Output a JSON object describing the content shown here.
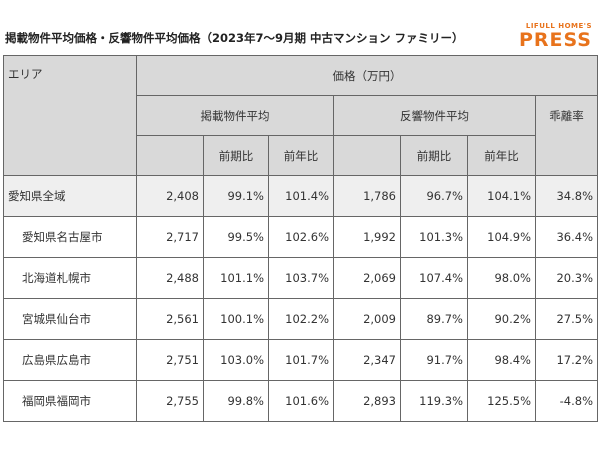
{
  "header": {
    "title": "掲載物件平均価格・反響物件平均価格（2023年7～9月期 中古マンション ファミリー）",
    "logo_top": "LIFULL HOME'S",
    "logo_main": "PRESS"
  },
  "table": {
    "area_header": "エリア",
    "price_header": "価格（万円）",
    "listed_header": "掲載物件平均",
    "response_header": "反響物件平均",
    "gap_header": "乖離率",
    "sub_headers": [
      "前期比",
      "前年比",
      "前期比",
      "前年比"
    ],
    "rows": [
      [
        "愛知県全域",
        "2,408",
        "99.1%",
        "101.4%",
        "1,786",
        "96.7%",
        "104.1%",
        "34.8%"
      ],
      [
        "愛知県名古屋市",
        "2,717",
        "99.5%",
        "102.6%",
        "1,992",
        "101.3%",
        "104.9%",
        "36.4%"
      ],
      [
        "北海道札幌市",
        "2,488",
        "101.1%",
        "103.7%",
        "2,069",
        "107.4%",
        "98.0%",
        "20.3%"
      ],
      [
        "宮城県仙台市",
        "2,561",
        "100.1%",
        "102.2%",
        "2,009",
        "89.7%",
        "90.2%",
        "27.5%"
      ],
      [
        "広島県広島市",
        "2,751",
        "103.0%",
        "101.7%",
        "2,347",
        "91.7%",
        "98.4%",
        "17.2%"
      ],
      [
        "福岡県福岡市",
        "2,755",
        "99.8%",
        "101.6%",
        "2,893",
        "119.3%",
        "125.5%",
        "-4.8%"
      ]
    ]
  }
}
